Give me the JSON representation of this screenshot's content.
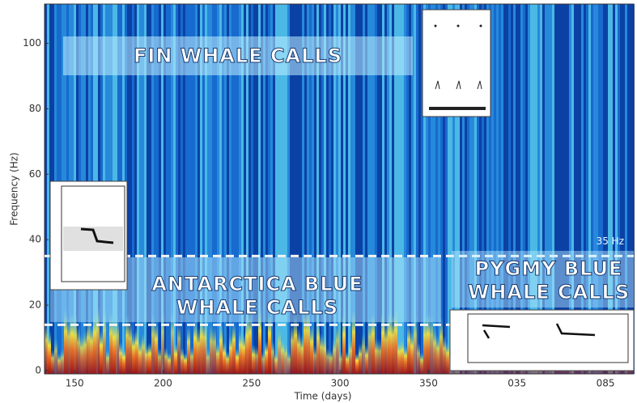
{
  "chart_data": {
    "type": "spectrogram",
    "xlabel": "Time (days)",
    "ylabel": "Frequency (Hz)",
    "xlim": [
      133,
      466
    ],
    "ylim": [
      -1,
      112
    ],
    "xticks": [
      150,
      200,
      250,
      300,
      350,
      {
        "value": 400,
        "label": "035"
      },
      {
        "value": 450,
        "label": "085"
      }
    ],
    "yticks": [
      0,
      20,
      40,
      60,
      80,
      100
    ],
    "reference_lines": [
      {
        "value": 35,
        "label": "35 Hz"
      },
      {
        "value": 14
      }
    ],
    "annotations": [
      {
        "lines": [
          "FIN WHALE CALLS"
        ]
      },
      {
        "lines": [
          "ANTARCTICA BLUE",
          "WHALE CALLS"
        ]
      },
      {
        "lines": [
          "PYGMY BLUE",
          "WHALE CALLS"
        ]
      }
    ]
  }
}
